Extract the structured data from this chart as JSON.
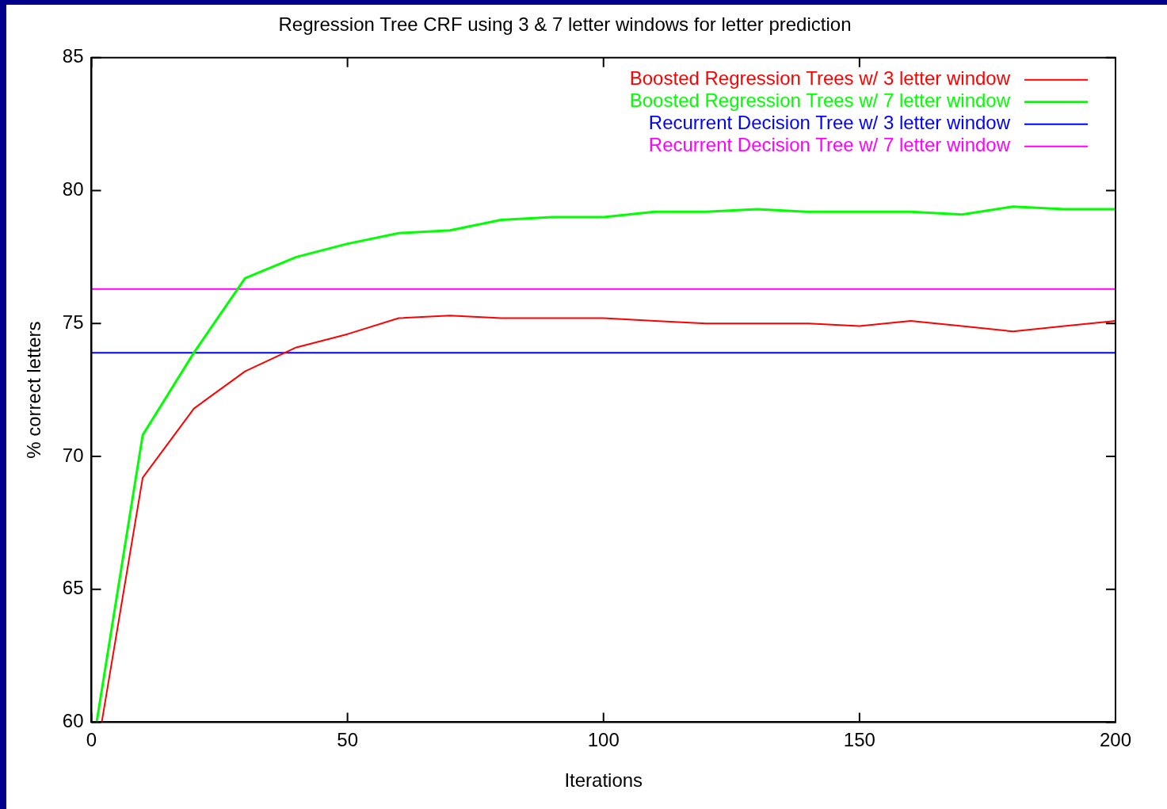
{
  "chart_data": {
    "type": "line",
    "title": "Regression Tree CRF using 3 & 7 letter windows for letter prediction",
    "xlabel": "Iterations",
    "ylabel": "% correct letters",
    "xlim": [
      0,
      200
    ],
    "xticks": [
      0,
      50,
      100,
      150,
      200
    ],
    "ylim": [
      60,
      85
    ],
    "yticks": [
      60,
      65,
      70,
      75,
      80,
      85
    ],
    "grid": false,
    "legend": "top right",
    "marker": "none",
    "line_style": "solid",
    "series": [
      {
        "name": "Boosted Regression Trees w/ 3 letter window",
        "color": "#ff0000",
        "x": [
          2,
          10,
          20,
          30,
          40,
          50,
          60,
          70,
          80,
          90,
          100,
          110,
          120,
          130,
          140,
          150,
          160,
          170,
          180,
          190,
          200
        ],
        "values": [
          60,
          69.2,
          71.8,
          73.2,
          74.1,
          74.6,
          75.2,
          75.3,
          75.2,
          75.2,
          75.2,
          75.1,
          75.0,
          75.0,
          75.0,
          74.9,
          75.1,
          74.9,
          74.7,
          74.9,
          75.1
        ]
      },
      {
        "name": "Boosted Regression Trees w/ 7 letter window",
        "color": "#00ff00",
        "x": [
          1,
          10,
          20,
          30,
          40,
          50,
          60,
          70,
          80,
          90,
          100,
          110,
          120,
          130,
          140,
          150,
          160,
          170,
          180,
          190,
          200
        ],
        "values": [
          60,
          70.8,
          73.9,
          76.7,
          77.5,
          78.0,
          78.4,
          78.5,
          78.9,
          79.0,
          79.0,
          79.2,
          79.2,
          79.3,
          79.2,
          79.2,
          79.2,
          79.1,
          79.4,
          79.3,
          79.3
        ]
      },
      {
        "name": "Recurrent Decision Tree w/ 3 letter window",
        "color": "#0000ff",
        "x": [
          0,
          200
        ],
        "values": [
          73.9,
          73.9
        ]
      },
      {
        "name": "Recurrent Decision Tree w/ 7 letter window",
        "color": "#ff00ff",
        "x": [
          0,
          200
        ],
        "values": [
          76.3,
          76.3
        ]
      }
    ]
  }
}
